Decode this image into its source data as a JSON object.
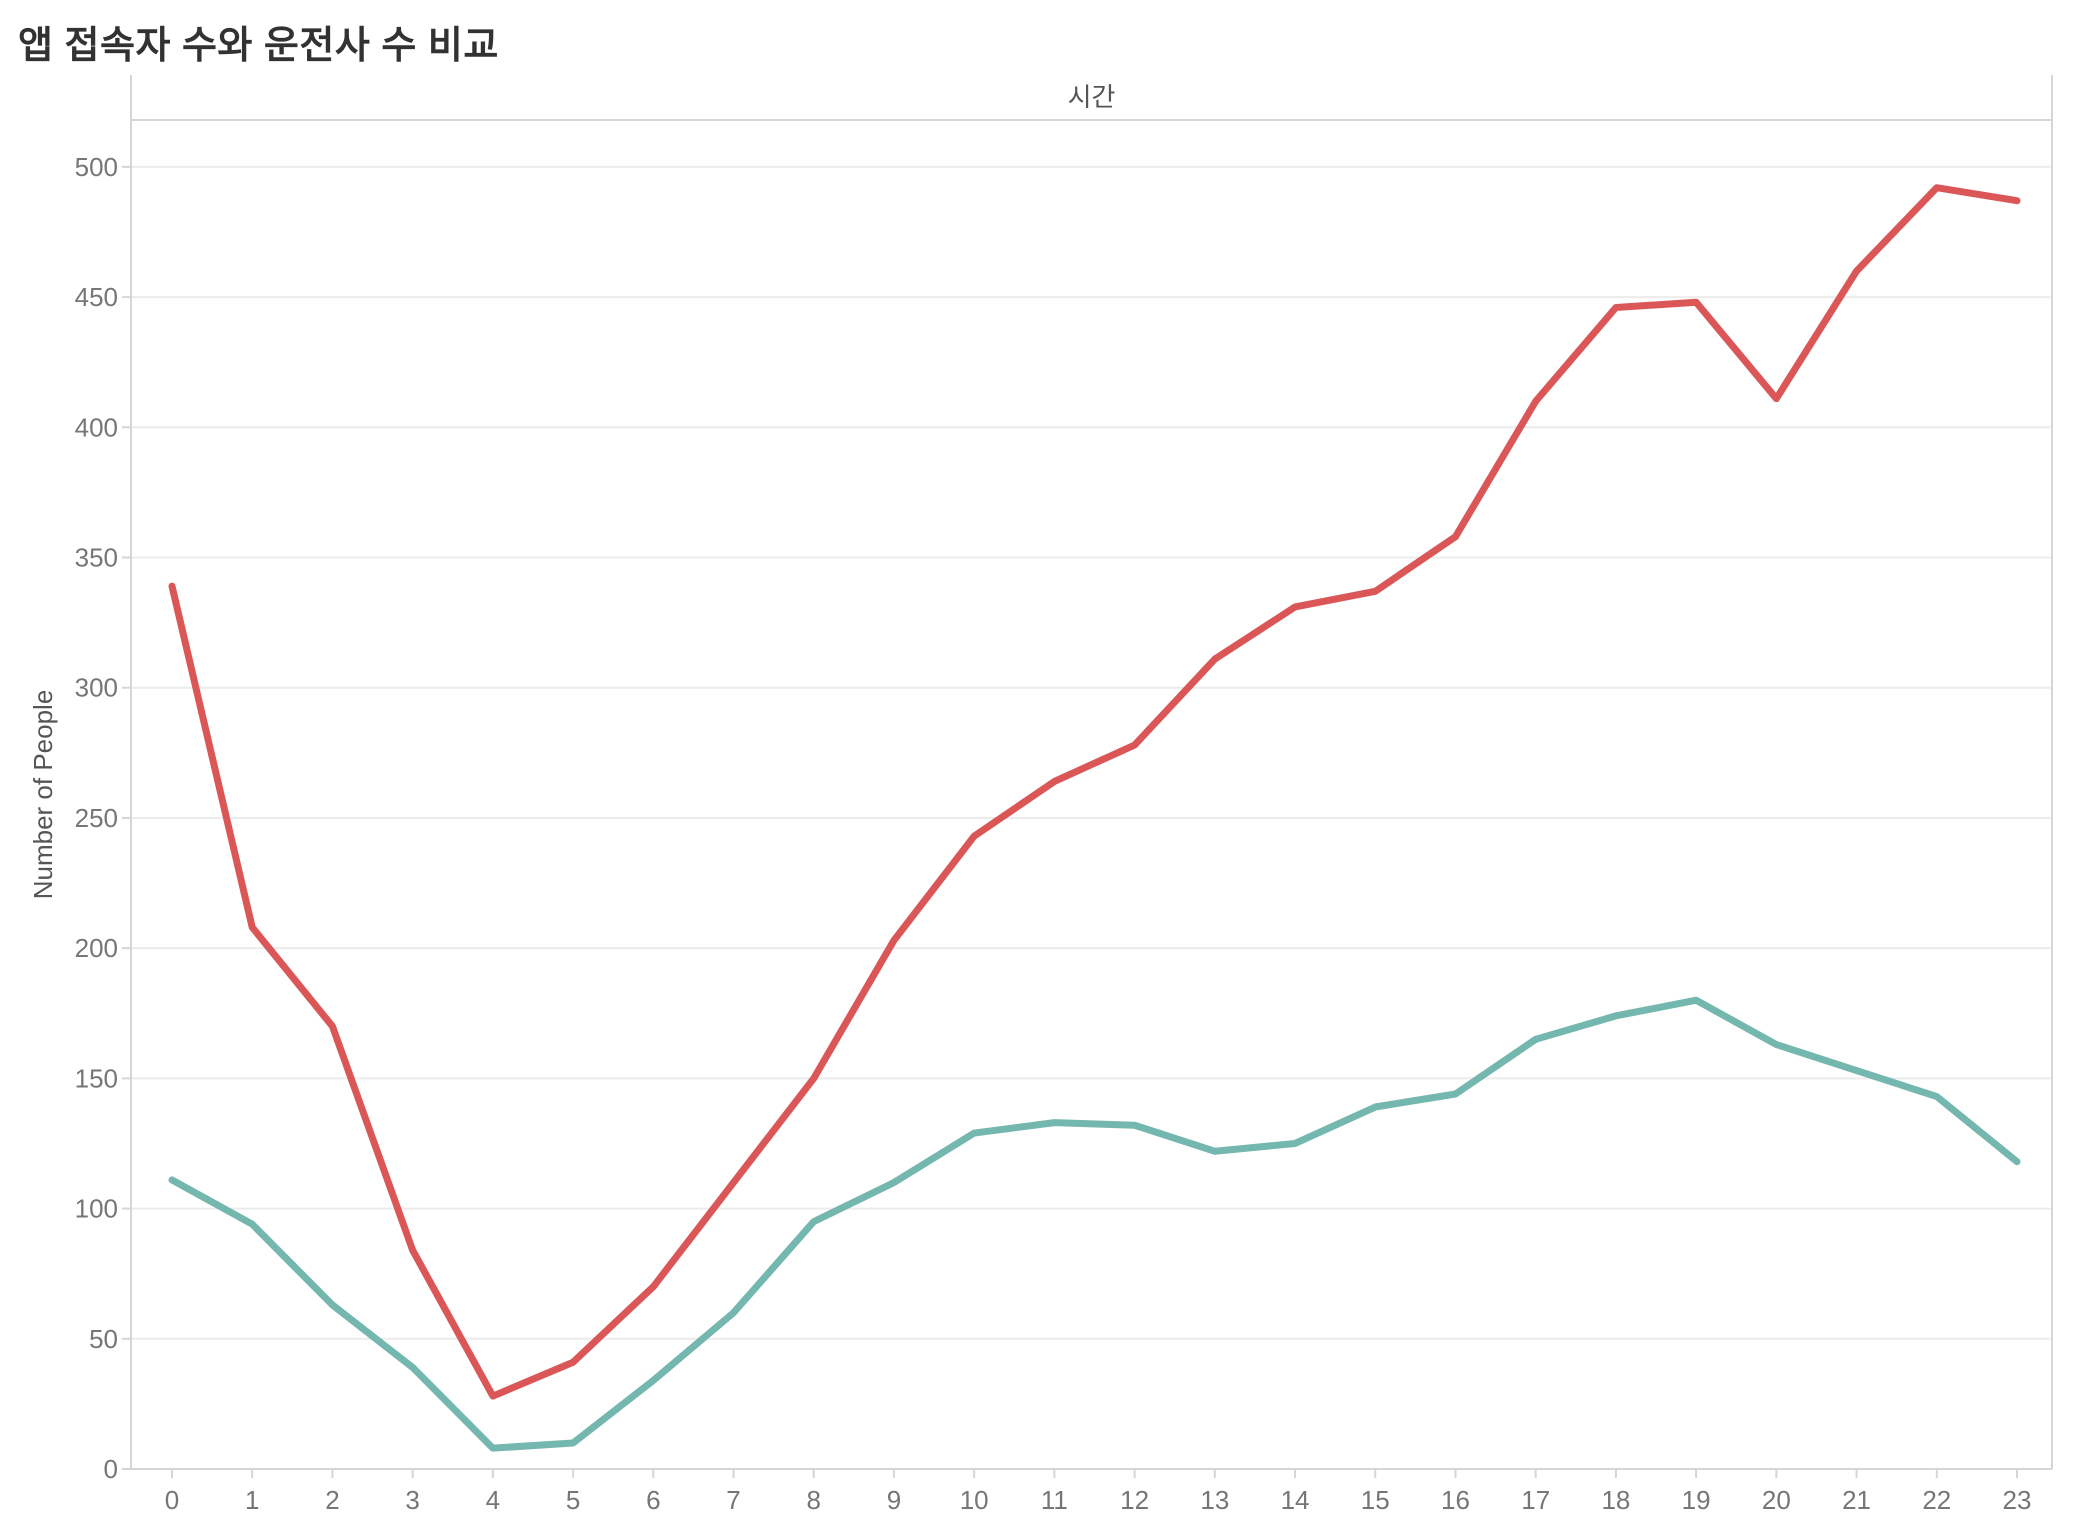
{
  "page": {
    "background": "#ffffff",
    "title_color": "#323232"
  },
  "chart_data": {
    "type": "line",
    "title": "앱 접속자 수와 운전사 수 비교",
    "top_axis_label": "시간",
    "ylabel": "Number of People",
    "xlabel": "",
    "x": [
      0,
      1,
      2,
      3,
      4,
      5,
      6,
      7,
      8,
      9,
      10,
      11,
      12,
      13,
      14,
      15,
      16,
      17,
      18,
      19,
      20,
      21,
      22,
      23
    ],
    "series": [
      {
        "id": "app-users",
        "name": "앱 접속자 수",
        "color": "#db5757",
        "values": [
          339,
          208,
          170,
          84,
          28,
          41,
          70,
          110,
          150,
          203,
          243,
          264,
          278,
          311,
          331,
          337,
          358,
          410,
          446,
          448,
          411,
          460,
          492,
          487
        ]
      },
      {
        "id": "drivers",
        "name": "운전사 수",
        "color": "#74b7af",
        "values": [
          111,
          94,
          63,
          39,
          8,
          10,
          34,
          60,
          95,
          110,
          129,
          133,
          132,
          122,
          125,
          139,
          144,
          165,
          174,
          180,
          163,
          153,
          143,
          118
        ]
      }
    ],
    "ylim": [
      0,
      518
    ],
    "yticks": [
      0,
      50,
      100,
      150,
      200,
      250,
      300,
      350,
      400,
      450,
      500
    ],
    "grid": true,
    "legend": "none",
    "gridline_color": "#ececec",
    "frame_color": "#d6d6d6",
    "line_width": 7
  }
}
